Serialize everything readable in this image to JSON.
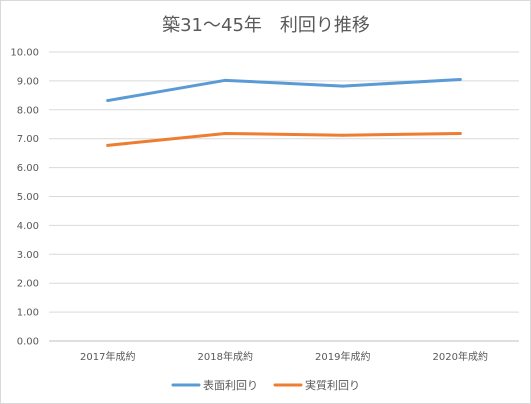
{
  "chart_data": {
    "type": "line",
    "title": "築31～45年　利回り推移",
    "xlabel": "",
    "ylabel": "",
    "categories": [
      "2017年成約",
      "2018年成約",
      "2019年成約",
      "2020年成約"
    ],
    "ylim": [
      0,
      10
    ],
    "yticks": [
      "0.00",
      "1.00",
      "2.00",
      "3.00",
      "4.00",
      "5.00",
      "6.00",
      "7.00",
      "8.00",
      "9.00",
      "10.00"
    ],
    "grid": true,
    "legend": "bottom",
    "series": [
      {
        "name": "表面利回り",
        "color": "#5b9bd5",
        "values": [
          8.32,
          9.02,
          8.82,
          9.05
        ]
      },
      {
        "name": "実質利回り",
        "color": "#ed7d31",
        "values": [
          6.77,
          7.18,
          7.12,
          7.18
        ]
      }
    ]
  }
}
